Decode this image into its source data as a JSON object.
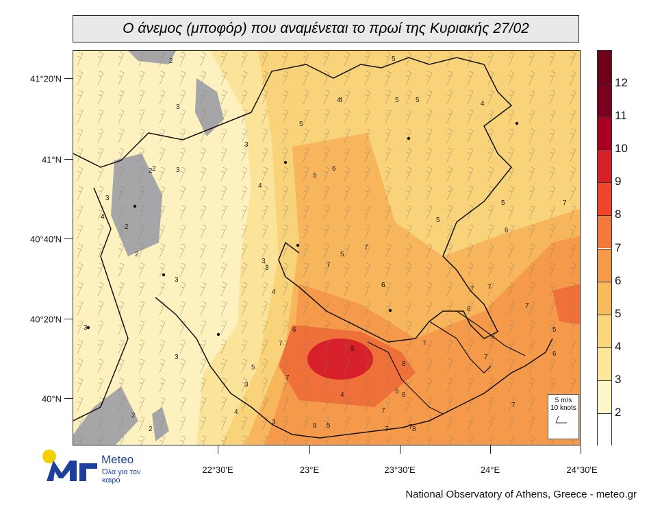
{
  "title": "Ο άνεμος (μποφόρ) που αναμένεται το πρωί της Κυριακής 27/02",
  "lat_labels": [
    "41°20'N",
    "41°N",
    "40°40'N",
    "40°20'N",
    "40°N"
  ],
  "lon_labels": [
    "22°30'E",
    "23°E",
    "23°30'E",
    "24°E",
    "24°30'E"
  ],
  "colorbar": {
    "labels": [
      "12",
      "11",
      "10",
      "9",
      "8",
      "7",
      "6",
      "5",
      "4",
      "3",
      "2"
    ],
    "colors": [
      "#7a0020",
      "#a80020",
      "#d8202a",
      "#f0452a",
      "#f47a3c",
      "#f59a4a",
      "#f8bb5c",
      "#f9d77a",
      "#fbe69a",
      "#fdf6c8",
      "#ffffff"
    ]
  },
  "legend": {
    "speed": "5 m/s",
    "knots": "10 knots"
  },
  "logo": {
    "name": "Meteo",
    "tagline": "Όλα για τον καιρό"
  },
  "credit": "National Observatory of Athens, Greece - meteo.gr",
  "contour_labels": [
    "2",
    "3",
    "2",
    "2",
    "3",
    "4",
    "5",
    "5",
    "4",
    "4",
    "5",
    "5",
    "3",
    "2",
    "3",
    "4",
    "3",
    "2",
    "3",
    "3",
    "4",
    "3",
    "3",
    "3",
    "6",
    "5",
    "7",
    "6",
    "8",
    "9",
    "7",
    "6",
    "7",
    "7",
    "6",
    "7",
    "7",
    "7",
    "6",
    "5",
    "5",
    "6",
    "5",
    "4",
    "5",
    "4",
    "7",
    "7",
    "6",
    "5",
    "4",
    "3",
    "5",
    "4",
    "6",
    "7",
    "7",
    "7",
    "7",
    "8",
    "6",
    "7",
    "8",
    "5",
    "2",
    "2"
  ]
}
